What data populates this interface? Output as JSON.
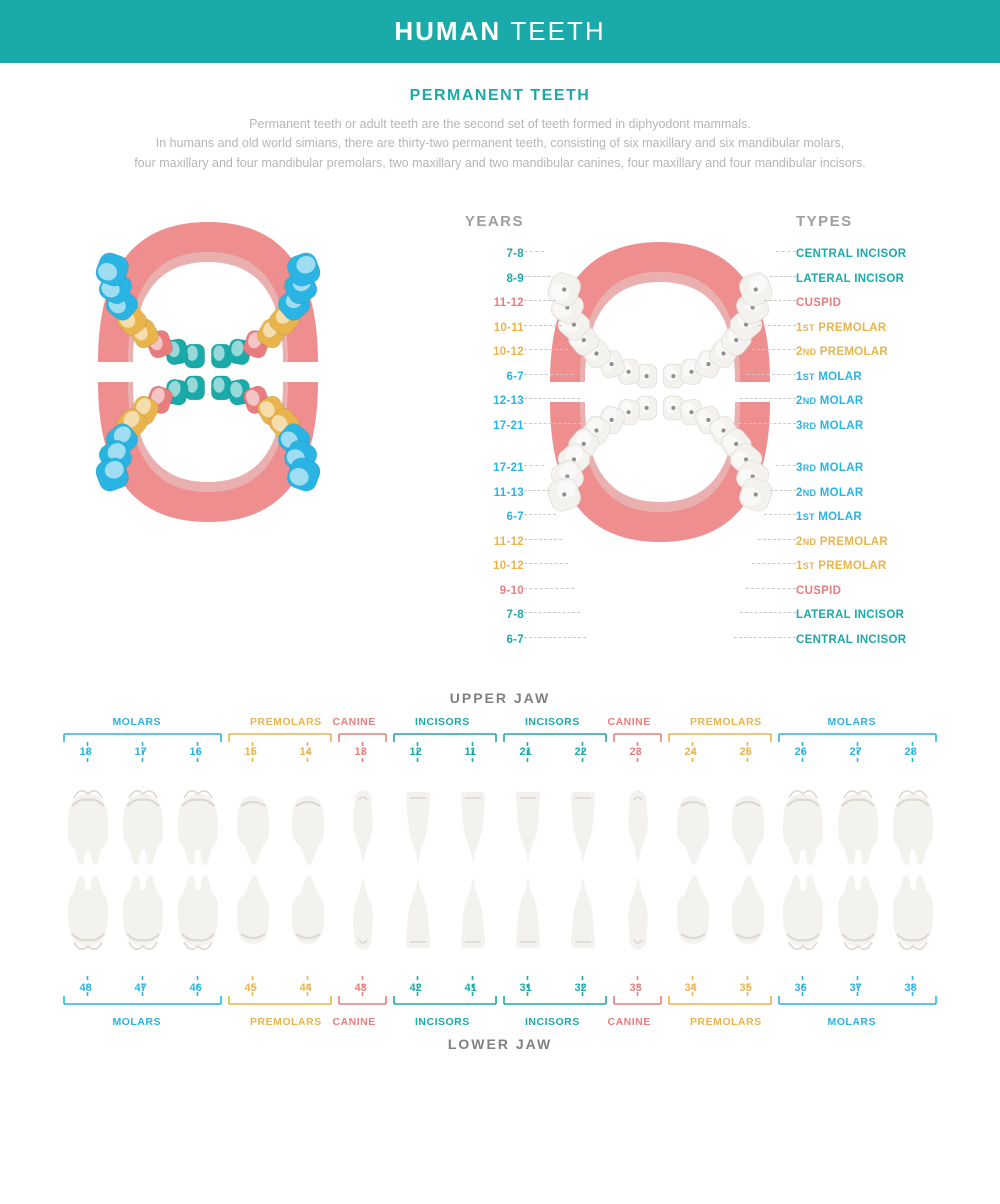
{
  "colors": {
    "header_bg": "#1aaaaa",
    "teal": "#1aaaaa",
    "blue": "#2ab4e3",
    "yellow": "#e9b44c",
    "pink": "#e97d7d",
    "grey_text": "#b6b6b6",
    "grey_heading": "#9e9e9e",
    "jaw_title": "#808080",
    "gum": "#ef8e8e",
    "gum_dark": "#d86f6f",
    "tooth_white": "#f4f2ef",
    "tooth_shade": "#dcd7cf",
    "leader": "#c9c9c9"
  },
  "header": {
    "bold": "HUMAN",
    "thin": "TEETH"
  },
  "intro": {
    "title": "PERMANENT TEETH",
    "lines": [
      "Permanent teeth or adult teeth are the second set of teeth formed in diphyodont mammals.",
      "In humans and old world simians, there are thirty-two permanent teeth, consisting of six maxillary and six mandibular molars,",
      "four maxillary and four mandibular premolars, two maxillary and two mandibular canines, four maxillary and four mandibular incisors."
    ]
  },
  "columns": {
    "years": "YEARS",
    "types": "TYPES"
  },
  "colored_arch": {
    "upper": [
      "teal",
      "teal",
      "pink",
      "yellow",
      "yellow",
      "blue",
      "blue",
      "blue"
    ],
    "lower": [
      "blue",
      "blue",
      "blue",
      "yellow",
      "yellow",
      "pink",
      "teal",
      "teal"
    ]
  },
  "eruption": {
    "upper": [
      {
        "years": "7-8",
        "type": "CENTRAL INCISOR",
        "color": "teal"
      },
      {
        "years": "8-9",
        "type": "LATERAL INCISOR",
        "color": "teal"
      },
      {
        "years": "11-12",
        "type": "CUSPID",
        "color": "pink"
      },
      {
        "years": "10-11",
        "type_ord": "1",
        "type_suf": "ST",
        "type": "PREMOLAR",
        "color": "yellow"
      },
      {
        "years": "10-12",
        "type_ord": "2",
        "type_suf": "ND",
        "type": "PREMOLAR",
        "color": "yellow"
      },
      {
        "years": "6-7",
        "type_ord": "1",
        "type_suf": "ST",
        "type": "MOLAR",
        "color": "blue"
      },
      {
        "years": "12-13",
        "type_ord": "2",
        "type_suf": "ND",
        "type": "MOLAR",
        "color": "blue"
      },
      {
        "years": "17-21",
        "type_ord": "3",
        "type_suf": "RD",
        "type": "MOLAR",
        "color": "blue"
      }
    ],
    "lower": [
      {
        "years": "17-21",
        "type_ord": "3",
        "type_suf": "RD",
        "type": "MOLAR",
        "color": "blue"
      },
      {
        "years": "11-13",
        "type_ord": "2",
        "type_suf": "ND",
        "type": "MOLAR",
        "color": "blue"
      },
      {
        "years": "6-7",
        "type_ord": "1",
        "type_suf": "ST",
        "type": "MOLAR",
        "color": "blue"
      },
      {
        "years": "11-12",
        "type_ord": "2",
        "type_suf": "ND",
        "type": "PREMOLAR",
        "color": "yellow"
      },
      {
        "years": "10-12",
        "type_ord": "1",
        "type_suf": "ST",
        "type": "PREMOLAR",
        "color": "yellow"
      },
      {
        "years": "9-10",
        "type": "CUSPID",
        "color": "pink"
      },
      {
        "years": "7-8",
        "type": "LATERAL INCISOR",
        "color": "teal"
      },
      {
        "years": "6-7",
        "type": "CENTRAL INCISOR",
        "color": "teal"
      }
    ]
  },
  "jaws": {
    "upper_title": "UPPER JAW",
    "lower_title": "LOWER JAW",
    "groups": [
      {
        "label": "MOLARS",
        "color": "blue",
        "count": 3
      },
      {
        "label": "PREMOLARS",
        "color": "yellow",
        "count": 2
      },
      {
        "label": "CANINE",
        "color": "pink",
        "count": 1
      },
      {
        "label": "INCISORS",
        "color": "teal",
        "count": 2
      },
      {
        "label": "INCISORS",
        "color": "teal",
        "count": 2
      },
      {
        "label": "CANINE",
        "color": "pink",
        "count": 1
      },
      {
        "label": "PREMOLARS",
        "color": "yellow",
        "count": 2
      },
      {
        "label": "MOLARS",
        "color": "blue",
        "count": 3
      }
    ],
    "upper_numbers": [
      "18",
      "17",
      "16",
      "15",
      "14",
      "13",
      "12",
      "11",
      "21",
      "22",
      "23",
      "24",
      "25",
      "26",
      "27",
      "28"
    ],
    "lower_numbers": [
      "48",
      "47",
      "46",
      "45",
      "44",
      "43",
      "42",
      "41",
      "31",
      "32",
      "33",
      "34",
      "35",
      "36",
      "37",
      "38"
    ],
    "shapes": [
      "molar",
      "molar",
      "molar",
      "premolar",
      "premolar",
      "canine",
      "incisor",
      "incisor",
      "incisor",
      "incisor",
      "canine",
      "premolar",
      "premolar",
      "molar",
      "molar",
      "molar"
    ]
  }
}
